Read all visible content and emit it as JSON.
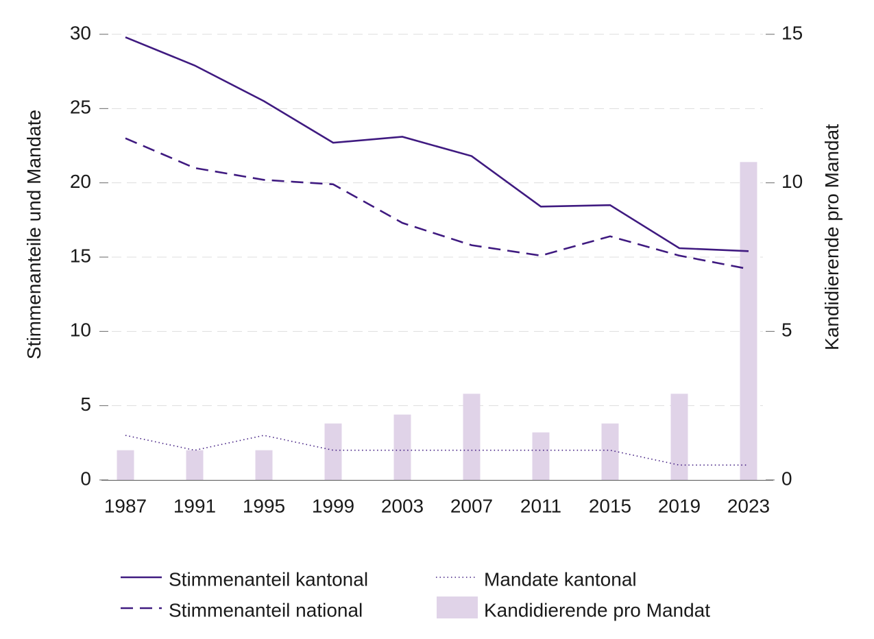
{
  "chart_data": {
    "type": "bar",
    "categories": [
      "1987",
      "1991",
      "1995",
      "1999",
      "2003",
      "2007",
      "2011",
      "2015",
      "2019",
      "2023"
    ],
    "ylabel": "Stimmenanteile und Mandate",
    "y2label": "Kandidierende pro Mandat",
    "ylim": [
      0,
      30
    ],
    "y2lim": [
      0,
      15
    ],
    "yticks": [
      "0",
      "5",
      "10",
      "15",
      "20",
      "25",
      "30"
    ],
    "y2ticks": [
      "0",
      "5",
      "10",
      "15"
    ],
    "grid": true,
    "legend_position": "bottom",
    "series": [
      {
        "name": "Stimmenanteil kantonal",
        "type": "line",
        "axis": "left",
        "style": "solid",
        "values": [
          29.8,
          27.9,
          25.5,
          22.7,
          23.1,
          21.8,
          18.4,
          18.5,
          15.6,
          15.4
        ]
      },
      {
        "name": "Stimmenanteil national",
        "type": "line",
        "axis": "left",
        "style": "dashed",
        "values": [
          23.0,
          21.0,
          20.2,
          19.9,
          17.3,
          15.8,
          15.1,
          16.4,
          15.1,
          14.2
        ]
      },
      {
        "name": "Mandate kantonal",
        "type": "line",
        "axis": "left",
        "style": "dotted",
        "values": [
          3,
          2,
          3,
          2,
          2,
          2,
          2,
          2,
          1,
          1
        ]
      },
      {
        "name": "Kandidierende pro Mandat",
        "type": "bar",
        "axis": "right",
        "values": [
          1.0,
          1.0,
          1.0,
          1.9,
          2.2,
          2.9,
          1.6,
          1.9,
          2.9,
          10.7
        ]
      }
    ],
    "colors": {
      "line": "#3f1a80",
      "bar": "#e0d3e8",
      "grid": "#dddddd",
      "text": "#1a1a1a"
    }
  },
  "legend": [
    {
      "key": "kantonal",
      "label": "Stimmenanteil kantonal"
    },
    {
      "key": "mandate",
      "label": "Mandate kantonal"
    },
    {
      "key": "national",
      "label": "Stimmenanteil national"
    },
    {
      "key": "kandidierende",
      "label": "Kandidierende pro Mandat"
    }
  ]
}
